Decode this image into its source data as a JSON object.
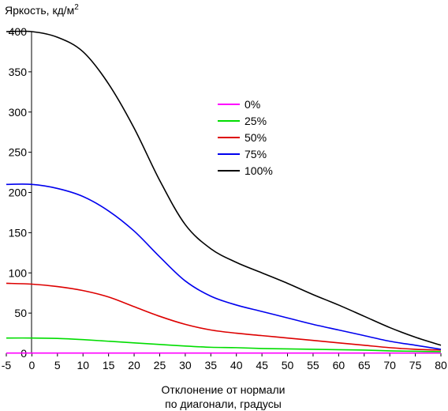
{
  "chart_data": {
    "type": "line",
    "ylabel": "Яркость, кд/м",
    "ylabel_superscript": "2",
    "xlabel_lines": [
      "Отклонение от нормали",
      "по диагонали, градусы"
    ],
    "xlim": [
      -5,
      80
    ],
    "ylim": [
      0,
      400
    ],
    "x_ticks": [
      -5,
      0,
      5,
      10,
      15,
      20,
      25,
      30,
      35,
      40,
      45,
      50,
      55,
      60,
      65,
      70,
      75,
      80
    ],
    "y_ticks": [
      0,
      50,
      100,
      150,
      200,
      250,
      300,
      350,
      400
    ],
    "grid": false,
    "legend_position": "center-right",
    "x": [
      -5,
      0,
      5,
      10,
      15,
      20,
      25,
      30,
      35,
      40,
      45,
      50,
      55,
      60,
      65,
      70,
      75,
      80
    ],
    "series": [
      {
        "name": "0%",
        "color": "#ff00ff",
        "values": [
          0.3,
          0.3,
          0.3,
          0.3,
          0.3,
          0.3,
          0.3,
          0.3,
          0.3,
          0.3,
          0.3,
          0.3,
          0.3,
          0.3,
          0.3,
          0.3,
          0.3,
          0.3
        ]
      },
      {
        "name": "25%",
        "color": "#00dd00",
        "values": [
          19,
          19,
          18.5,
          17,
          15,
          13,
          11,
          9,
          7.5,
          7,
          6,
          5.5,
          5,
          4.5,
          4,
          3,
          2.5,
          2
        ]
      },
      {
        "name": "50%",
        "color": "#dd0000",
        "values": [
          87,
          86,
          83,
          78,
          70,
          58,
          46,
          36,
          29,
          25,
          22,
          19,
          16,
          13,
          10,
          7,
          5,
          4
        ]
      },
      {
        "name": "75%",
        "color": "#0000ee",
        "values": [
          210,
          210,
          205,
          195,
          177,
          152,
          120,
          90,
          71,
          60,
          52,
          44,
          36,
          29,
          22,
          15,
          10,
          5
        ]
      },
      {
        "name": "100%",
        "color": "#000000",
        "values": [
          400,
          400,
          393,
          375,
          335,
          280,
          215,
          160,
          130,
          113,
          100,
          87,
          73,
          60,
          46,
          32,
          20,
          10
        ]
      }
    ]
  }
}
